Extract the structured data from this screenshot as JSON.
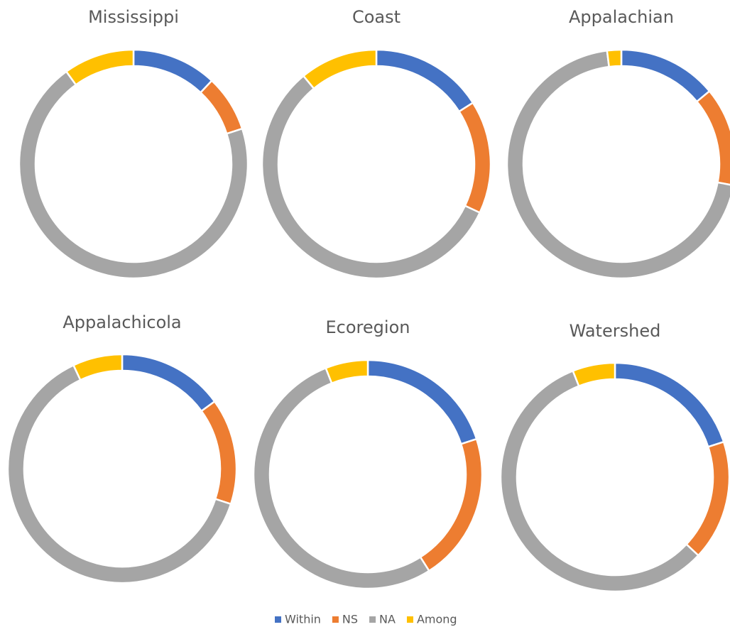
{
  "chart_data": [
    {
      "type": "doughnut",
      "title": "Mississippi",
      "categories": [
        "Within",
        "NS",
        "NA",
        "Among"
      ],
      "values": [
        12,
        8,
        70,
        10
      ],
      "colors": [
        "#4472c4",
        "#ed7d31",
        "#a5a5a5",
        "#ffc000"
      ]
    },
    {
      "type": "doughnut",
      "title": "Coast",
      "categories": [
        "Within",
        "NS",
        "NA",
        "Among"
      ],
      "values": [
        16,
        16,
        57,
        11
      ],
      "colors": [
        "#4472c4",
        "#ed7d31",
        "#a5a5a5",
        "#ffc000"
      ]
    },
    {
      "type": "doughnut",
      "title": "Appalachian",
      "categories": [
        "Within",
        "NS",
        "NA",
        "Among"
      ],
      "values": [
        14,
        14,
        70,
        2
      ],
      "colors": [
        "#4472c4",
        "#ed7d31",
        "#a5a5a5",
        "#ffc000"
      ]
    },
    {
      "type": "doughnut",
      "title": "Appalachicola",
      "categories": [
        "Within",
        "NS",
        "NA",
        "Among"
      ],
      "values": [
        15,
        15,
        63,
        7
      ],
      "colors": [
        "#4472c4",
        "#ed7d31",
        "#a5a5a5",
        "#ffc000"
      ]
    },
    {
      "type": "doughnut",
      "title": "Ecoregion",
      "categories": [
        "Within",
        "NS",
        "NA",
        "Among"
      ],
      "values": [
        20,
        21,
        53,
        6
      ],
      "colors": [
        "#4472c4",
        "#ed7d31",
        "#a5a5a5",
        "#ffc000"
      ]
    },
    {
      "type": "doughnut",
      "title": "Watershed",
      "categories": [
        "Within",
        "NS",
        "NA",
        "Among"
      ],
      "values": [
        20,
        17,
        57,
        6
      ],
      "colors": [
        "#4472c4",
        "#ed7d31",
        "#a5a5a5",
        "#ffc000"
      ]
    }
  ]
}
